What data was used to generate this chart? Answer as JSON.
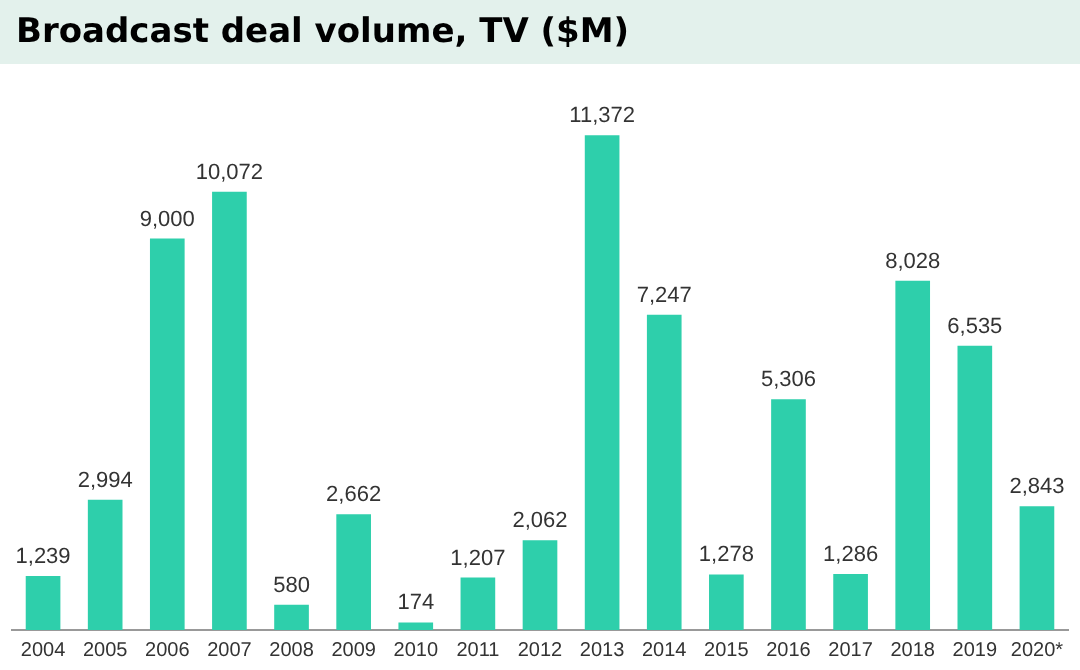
{
  "chart_data": {
    "type": "bar",
    "title": "Broadcast deal volume, TV ($M)",
    "categories": [
      "2004",
      "2005",
      "2006",
      "2007",
      "2008",
      "2009",
      "2010",
      "2011",
      "2012",
      "2013",
      "2014",
      "2015",
      "2016",
      "2017",
      "2018",
      "2019",
      "2020*"
    ],
    "values": [
      1239,
      2994,
      9000,
      10072,
      580,
      2662,
      174,
      1207,
      2062,
      11372,
      7247,
      1278,
      5306,
      1286,
      8028,
      6535,
      2843
    ],
    "value_labels": [
      "1,239",
      "2,994",
      "9,000",
      "10,072",
      "580",
      "2,662",
      "174",
      "1,207",
      "2,062",
      "11,372",
      "7,247",
      "1,278",
      "5,306",
      "1,286",
      "8,028",
      "6,535",
      "2,843"
    ],
    "color": "#2ecfab",
    "grid": false,
    "legend": false
  }
}
